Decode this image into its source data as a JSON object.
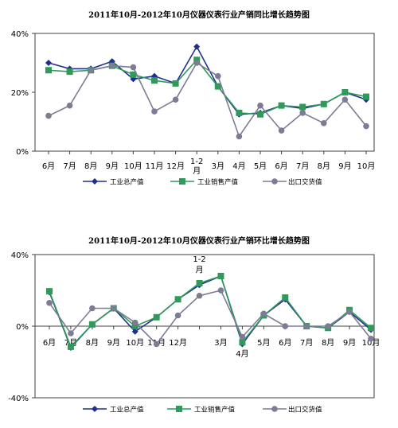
{
  "chart_data": [
    {
      "type": "line",
      "title": "2011年10月-2012年10月仪器仪表行业产销同比增长趋势图",
      "categories": [
        "6月",
        "7月",
        "8月",
        "9月",
        "10月",
        "11月",
        "12月",
        "1-2月",
        "3月",
        "4月",
        "5月",
        "6月",
        "7月",
        "8月",
        "9月",
        "10月"
      ],
      "ylim": [
        0,
        40
      ],
      "yticks": [
        "0%",
        "20%",
        "40%"
      ],
      "ytick_values": [
        0,
        20,
        40
      ],
      "grid": false,
      "legend_position": "bottom",
      "series": [
        {
          "name": "工业总产值",
          "color": "#1f2f8f",
          "marker": "diamond",
          "values": [
            30,
            28,
            28,
            30.5,
            24.5,
            25.5,
            23,
            35.5,
            22,
            12.5,
            13,
            15.5,
            14.5,
            16,
            20,
            17.5
          ]
        },
        {
          "name": "工业销售产值",
          "color": "#2f9a5a",
          "marker": "square",
          "values": [
            27.5,
            27,
            27.5,
            29,
            26,
            24,
            23,
            31,
            22,
            13,
            12.5,
            15.5,
            15,
            16,
            20,
            18.5
          ]
        },
        {
          "name": "出口交货值",
          "color": "#7c7c94",
          "marker": "circle",
          "values": [
            12,
            15.5,
            27.5,
            29,
            28.5,
            13.5,
            17.5,
            30,
            25.5,
            5,
            15.5,
            7,
            13,
            9.5,
            17.5,
            8.5
          ]
        }
      ]
    },
    {
      "type": "line",
      "title": "2011年10月-2012年10月仪器仪表行业产销环比增长趋势图",
      "categories": [
        "6月",
        "7月",
        "8月",
        "9月",
        "10月",
        "11月",
        "12月",
        "1-2月",
        "3月",
        "4月",
        "5月",
        "6月",
        "7月",
        "8月",
        "9月",
        "10月"
      ],
      "ylim": [
        -40,
        40
      ],
      "yticks": [
        "-40%",
        "0%",
        "40%"
      ],
      "ytick_values": [
        -40,
        0,
        40
      ],
      "grid": false,
      "legend_position": "bottom",
      "series": [
        {
          "name": "工业总产值",
          "color": "#1f2f8f",
          "marker": "diamond",
          "values": [
            19,
            -12,
            1,
            10,
            -3,
            5,
            15,
            23,
            28,
            -10,
            6,
            15,
            0,
            -1,
            8,
            -2
          ]
        },
        {
          "name": "工业销售产值",
          "color": "#2f9a5a",
          "marker": "square",
          "values": [
            19.5,
            -11.5,
            1,
            10,
            0,
            5,
            15,
            24,
            28,
            -9,
            6,
            16,
            0,
            -1,
            9,
            -1
          ]
        },
        {
          "name": "出口交货值",
          "color": "#7c7c94",
          "marker": "circle",
          "values": [
            13,
            -4,
            10,
            10,
            2,
            -10,
            6,
            17,
            20,
            -6,
            7,
            0,
            0,
            0,
            8,
            -7
          ]
        }
      ]
    }
  ]
}
